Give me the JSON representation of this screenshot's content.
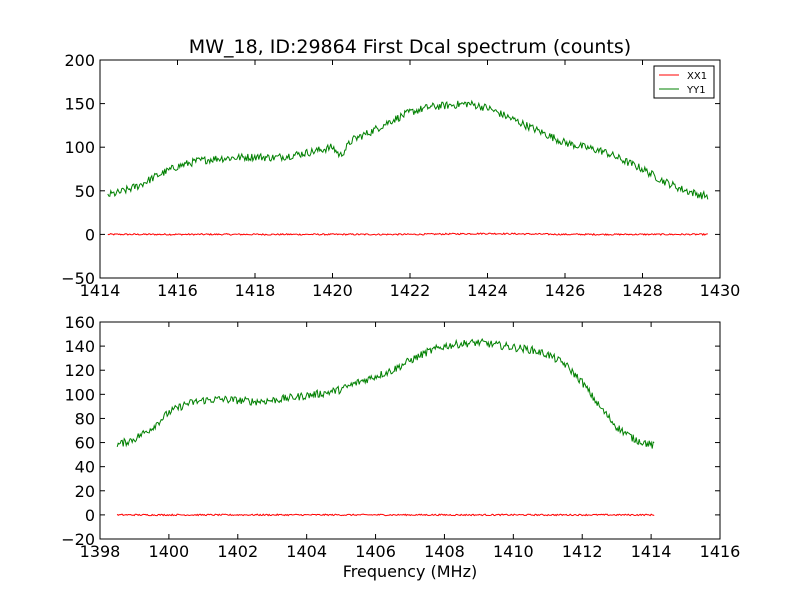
{
  "figure_title": "MW_18, ID:29864 First Dcal spectrum (counts)",
  "chart_data": [
    {
      "type": "line",
      "title": "MW_18, ID:29864 First Dcal spectrum (counts)",
      "xlabel": "",
      "ylabel": "",
      "xlim": [
        1414,
        1430
      ],
      "ylim": [
        -50,
        200
      ],
      "xticks": [
        1414,
        1416,
        1418,
        1420,
        1422,
        1424,
        1426,
        1428,
        1430
      ],
      "yticks": [
        -50,
        0,
        50,
        100,
        150,
        200
      ],
      "grid": false,
      "legend": {
        "placement": "top-right",
        "entries": [
          "XX1",
          "YY1"
        ]
      },
      "series": [
        {
          "name": "XX1",
          "color": "#ff0000",
          "x": [
            1414.2,
            1416,
            1418,
            1420,
            1422,
            1424,
            1426,
            1428,
            1429.7
          ],
          "y": [
            0,
            0,
            0,
            0,
            0,
            1,
            0,
            0,
            0
          ]
        },
        {
          "name": "YY1",
          "color": "#008000",
          "x": [
            1414.2,
            1414.5,
            1415,
            1415.5,
            1416,
            1416.5,
            1417,
            1417.5,
            1418,
            1418.5,
            1419,
            1419.5,
            1420,
            1420.2,
            1420.5,
            1421,
            1421.5,
            1422,
            1422.5,
            1423,
            1423.5,
            1424,
            1424.5,
            1425,
            1425.5,
            1426,
            1426.5,
            1427,
            1427.5,
            1428,
            1428.5,
            1429,
            1429.5,
            1429.7
          ],
          "y": [
            45,
            48,
            56,
            68,
            78,
            84,
            87,
            88,
            89,
            88,
            91,
            95,
            100,
            90,
            108,
            118,
            130,
            140,
            146,
            148,
            150,
            145,
            135,
            125,
            115,
            105,
            100,
            95,
            85,
            75,
            62,
            52,
            45,
            44
          ]
        }
      ]
    },
    {
      "type": "line",
      "title": "",
      "xlabel": "Frequency (MHz)",
      "ylabel": "",
      "xlim": [
        1398,
        1416
      ],
      "ylim": [
        -20,
        160
      ],
      "xticks": [
        1398,
        1400,
        1402,
        1404,
        1406,
        1408,
        1410,
        1412,
        1414,
        1416
      ],
      "yticks": [
        -20,
        0,
        20,
        40,
        60,
        80,
        100,
        120,
        140,
        160
      ],
      "grid": false,
      "series": [
        {
          "color": "#ff0000",
          "x": [
            1398.5,
            1400,
            1402,
            1404,
            1406,
            1408,
            1410,
            1412,
            1414.1
          ],
          "y": [
            0,
            0,
            0,
            0,
            0,
            0,
            0,
            0,
            0
          ]
        },
        {
          "color": "#008000",
          "x": [
            1398.5,
            1399,
            1399.5,
            1400,
            1400.5,
            1401,
            1401.5,
            1402,
            1402.5,
            1403,
            1403.5,
            1404,
            1404.5,
            1405,
            1405.5,
            1406,
            1406.5,
            1407,
            1407.5,
            1408,
            1408.5,
            1409,
            1409.5,
            1410,
            1410.5,
            1411,
            1411.5,
            1412,
            1412.5,
            1413,
            1413.5,
            1414.1
          ],
          "y": [
            58,
            63,
            72,
            85,
            92,
            95,
            96,
            95,
            94,
            95,
            97,
            99,
            101,
            104,
            110,
            115,
            120,
            128,
            135,
            140,
            142,
            143,
            141,
            139,
            137,
            133,
            125,
            110,
            90,
            73,
            63,
            57
          ]
        }
      ]
    }
  ]
}
